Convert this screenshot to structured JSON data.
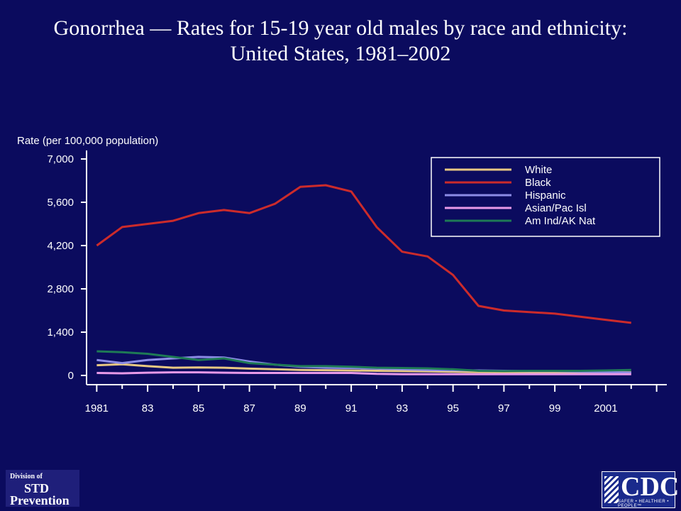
{
  "title": {
    "line1": "Gonorrhea — Rates for 15-19 year old males by race and ethnicity:",
    "line2": "United States, 1981–2002"
  },
  "logos": {
    "std": {
      "line1": "Division of",
      "line2": "STD",
      "line3": "Prevention"
    },
    "cdc": {
      "mark": "CDC",
      "tagline": "SAFER • HEALTHIER • PEOPLE™"
    }
  },
  "chart_data": {
    "type": "line",
    "title": "",
    "xlabel": "",
    "ylabel": "Rate (per 100,000 population)",
    "x": [
      1981,
      1982,
      1983,
      1984,
      1985,
      1986,
      1987,
      1988,
      1989,
      1990,
      1991,
      1992,
      1993,
      1994,
      1995,
      1996,
      1997,
      1998,
      1999,
      2000,
      2001,
      2002
    ],
    "xlim": [
      1980.6,
      2003.4
    ],
    "ylim": [
      0,
      7000
    ],
    "y_ticks": [
      0,
      1400,
      2800,
      4200,
      5600,
      7000
    ],
    "y_tick_labels": [
      "0",
      "1,400",
      "2,800",
      "4,200",
      "5,600",
      "7,000"
    ],
    "x_tick_labels": [
      {
        "x": 1981,
        "label": "1981"
      },
      {
        "x": 1983,
        "label": "83"
      },
      {
        "x": 1985,
        "label": "85"
      },
      {
        "x": 1987,
        "label": "87"
      },
      {
        "x": 1989,
        "label": "89"
      },
      {
        "x": 1991,
        "label": "91"
      },
      {
        "x": 1993,
        "label": "93"
      },
      {
        "x": 1995,
        "label": "95"
      },
      {
        "x": 1997,
        "label": "97"
      },
      {
        "x": 1999,
        "label": "99"
      },
      {
        "x": 2001,
        "label": "2001"
      }
    ],
    "legend_position": "top-right",
    "grid": false,
    "series": [
      {
        "name": "White",
        "color": "#e8c882",
        "values": [
          330,
          360,
          300,
          250,
          260,
          250,
          220,
          200,
          180,
          170,
          160,
          150,
          140,
          130,
          120,
          110,
          100,
          100,
          100,
          100,
          100,
          100
        ]
      },
      {
        "name": "Black",
        "color": "#cc2b2b",
        "values": [
          4200,
          4800,
          4900,
          5000,
          5250,
          5350,
          5250,
          5550,
          6100,
          6150,
          5950,
          4800,
          4000,
          3850,
          3250,
          2250,
          2100,
          2050,
          2000,
          1900,
          1800,
          1700
        ]
      },
      {
        "name": "Hispanic",
        "color": "#8c8ce6",
        "values": [
          500,
          400,
          500,
          550,
          600,
          580,
          450,
          350,
          280,
          250,
          240,
          220,
          200,
          180,
          170,
          160,
          150,
          140,
          140,
          120,
          110,
          90
        ]
      },
      {
        "name": "Asian/Pac Isl",
        "color": "#e89ae8",
        "values": [
          80,
          70,
          90,
          100,
          100,
          90,
          80,
          80,
          80,
          80,
          80,
          50,
          40,
          40,
          40,
          40,
          40,
          40,
          40,
          40,
          40,
          40
        ]
      },
      {
        "name": "Am Ind/AK Nat",
        "color": "#1e7a55",
        "values": [
          780,
          750,
          700,
          600,
          500,
          550,
          400,
          350,
          300,
          300,
          280,
          250,
          240,
          230,
          200,
          150,
          140,
          150,
          150,
          150,
          160,
          180
        ]
      }
    ]
  }
}
